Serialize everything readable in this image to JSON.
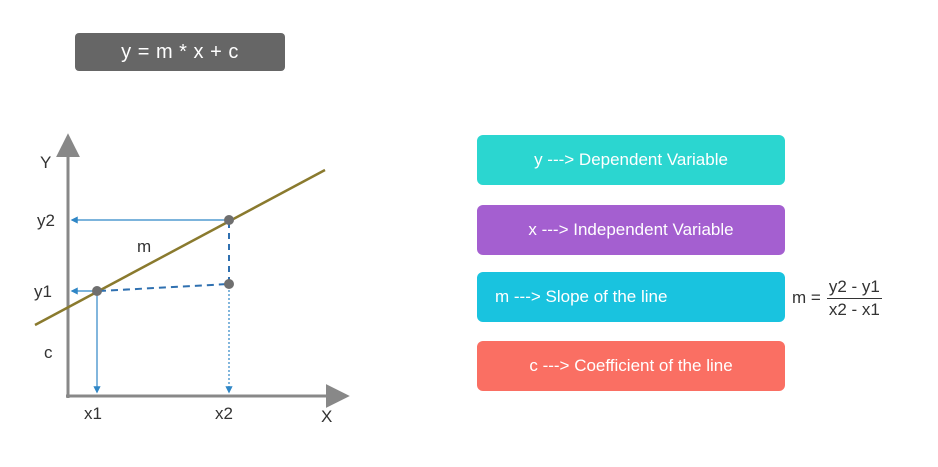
{
  "equation": "y = m * x + c",
  "graph": {
    "y_axis_label": "Y",
    "x_axis_label": "X",
    "y2_label": "y2",
    "y1_label": "y1",
    "c_label": "c",
    "m_label": "m",
    "x1_label": "x1",
    "x2_label": "x2"
  },
  "definitions": [
    {
      "text": "y ---> Dependent Variable",
      "color": "#2bd6d0"
    },
    {
      "text": "x ---> Independent Variable",
      "color": "#a45fd0"
    },
    {
      "text": "m ---> Slope of the line",
      "color": "#19c3df"
    },
    {
      "text": "c ---> Coefficient of the line",
      "color": "#fa6f63"
    }
  ],
  "slope_formula": {
    "lhs": "m =",
    "numerator": "y2 - y1",
    "denominator": "x2 - x1"
  }
}
